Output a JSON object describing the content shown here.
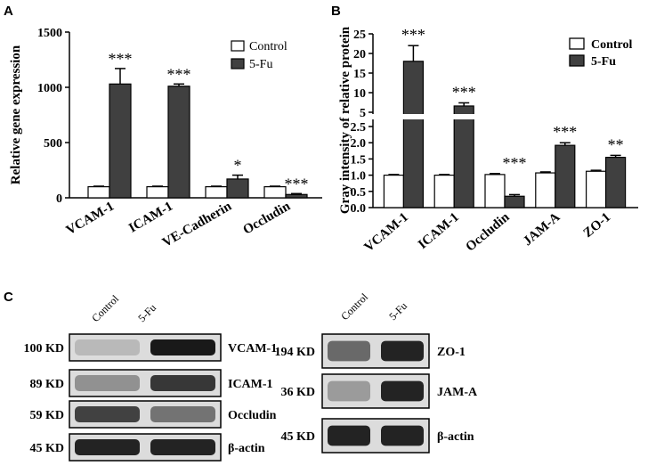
{
  "panels": {
    "a": "A",
    "b": "B",
    "c": "C"
  },
  "chart_data": [
    {
      "type": "bar",
      "ylabel": "Relative gene expression",
      "xlabel": "",
      "title": "",
      "ylim": [
        0,
        1500
      ],
      "yticks": [
        "0",
        "500",
        "1000",
        "1500"
      ],
      "categories": [
        "VCAM-1",
        "ICAM-1",
        "VE-Cadherin",
        "Occludin"
      ],
      "series": [
        {
          "name": "Control",
          "values": [
            100,
            100,
            100,
            100
          ],
          "errors": [
            5,
            5,
            5,
            5
          ],
          "color": "#ffffff"
        },
        {
          "name": "5-Fu",
          "values": [
            1030,
            1010,
            170,
            30
          ],
          "errors": [
            140,
            20,
            35,
            8
          ],
          "color": "#404040"
        }
      ],
      "significance": [
        "***",
        "***",
        "*",
        "***"
      ],
      "legend": "top-right",
      "grid": false
    },
    {
      "type": "bar",
      "ylabel": "Gray intensity of relative protein",
      "xlabel": "",
      "title": "",
      "axis_break": true,
      "ylim_lower": [
        0,
        2.5
      ],
      "ylim_upper": [
        5,
        25
      ],
      "yticks_lower": [
        "0.0",
        "0.5",
        "1.0",
        "1.5",
        "2.0",
        "2.5"
      ],
      "yticks_upper": [
        "5",
        "10",
        "15",
        "20",
        "25"
      ],
      "categories": [
        "VCAM-1",
        "ICAM-1",
        "Occludin",
        "JAM-A",
        "ZO-1"
      ],
      "series": [
        {
          "name": "Control",
          "values": [
            1.0,
            1.0,
            1.02,
            1.07,
            1.12
          ],
          "errors": [
            0.02,
            0.02,
            0.03,
            0.03,
            0.03
          ],
          "color": "#ffffff"
        },
        {
          "name": "5-Fu",
          "values": [
            18.0,
            6.6,
            0.35,
            1.92,
            1.55
          ],
          "errors": [
            4.0,
            0.8,
            0.05,
            0.08,
            0.06
          ],
          "color": "#404040"
        }
      ],
      "significance": [
        "***",
        "***",
        "***",
        "***",
        "**"
      ],
      "legend": "top-right",
      "grid": false
    }
  ],
  "western": {
    "left": {
      "lanes": [
        "Control",
        "5-Fu"
      ],
      "rows": [
        {
          "kd": "100 KD",
          "protein": "VCAM-1",
          "lane1": 0.15,
          "lane2": 0.95
        },
        {
          "kd": "89 KD",
          "protein": "ICAM-1",
          "lane1": 0.35,
          "lane2": 0.8
        },
        {
          "kd": "59 KD",
          "protein": "Occludin",
          "lane1": 0.75,
          "lane2": 0.5
        },
        {
          "kd": "45 KD",
          "protein": "β-actin",
          "lane1": 0.9,
          "lane2": 0.9
        }
      ]
    },
    "right": {
      "lanes": [
        "Control",
        "5-Fu"
      ],
      "rows": [
        {
          "kd": "194 KD",
          "protein": "ZO-1",
          "lane1": 0.55,
          "lane2": 0.9
        },
        {
          "kd": "36 KD",
          "protein": "JAM-A",
          "lane1": 0.3,
          "lane2": 0.9
        },
        {
          "kd": "45 KD",
          "protein": "β-actin",
          "lane1": 0.9,
          "lane2": 0.9
        }
      ]
    }
  }
}
